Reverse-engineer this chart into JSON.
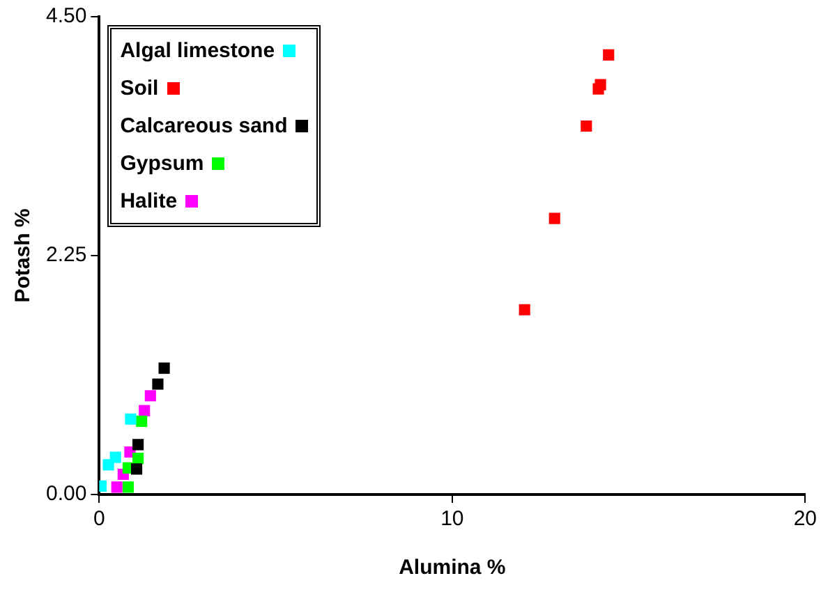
{
  "chart_data": {
    "type": "scatter",
    "xlabel": "Alumina %",
    "ylabel": "Potash %",
    "xlim": [
      0,
      20
    ],
    "xticks": [
      0,
      10,
      20
    ],
    "ylim": [
      0,
      4.5
    ],
    "yticks": [
      {
        "value": 0,
        "label": "0.00"
      },
      {
        "value": 2.25,
        "label": "2.25"
      },
      {
        "value": 4.5,
        "label": "4.50"
      }
    ],
    "grid": false,
    "legend": "top left",
    "marker": "square",
    "series": [
      {
        "name": "Algal limestone",
        "color": "#00ffff",
        "x": [
          0.89,
          0.26,
          0.05,
          0.46
        ],
        "values": [
          0.71,
          0.28,
          0.08,
          0.35
        ]
      },
      {
        "name": "Soil",
        "color": "#ff0000",
        "x": [
          12.05,
          12.9,
          13.8,
          14.14,
          14.2,
          14.43
        ],
        "values": [
          1.74,
          2.6,
          3.47,
          3.82,
          3.86,
          4.14
        ]
      },
      {
        "name": "Calcareous sand",
        "color": "#000000",
        "x": [
          1.84,
          1.66,
          1.1,
          1.06
        ],
        "values": [
          1.19,
          1.04,
          0.47,
          0.24
        ]
      },
      {
        "name": "Gypsum",
        "color": "#00ff00",
        "x": [
          1.2,
          1.1,
          0.82,
          0.82
        ],
        "values": [
          0.69,
          0.34,
          0.25,
          0.07
        ]
      },
      {
        "name": "Halite",
        "color": "#ff00ff",
        "x": [
          1.45,
          1.28,
          0.87,
          0.68,
          0.5
        ],
        "values": [
          0.93,
          0.79,
          0.4,
          0.19,
          0.07
        ]
      }
    ]
  }
}
